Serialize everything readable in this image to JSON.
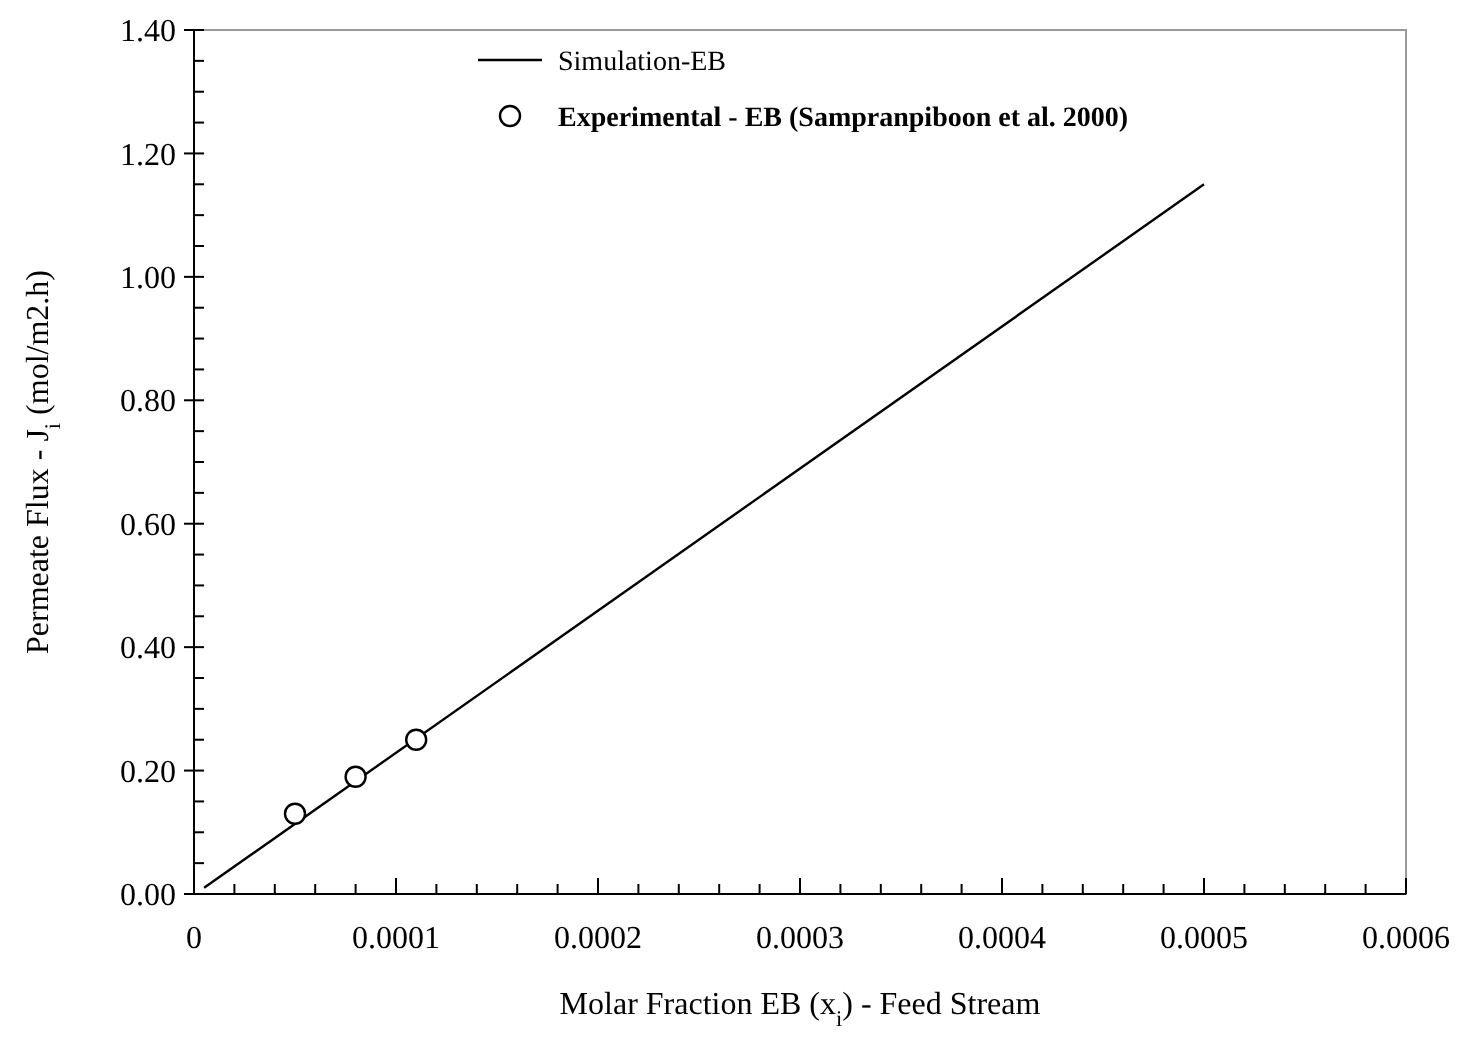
{
  "chart_data": {
    "type": "line",
    "xlabel": "Molar Fraction EB (x$_{i}$) - Feed Stream",
    "ylabel": "Permeate Flux - J$_{i}$ (mol/m2.h)",
    "xlim": [
      0,
      0.0006
    ],
    "ylim": [
      0,
      1.4
    ],
    "xticks": [
      0,
      {
        "value": 2e-05,
        "label": null
      },
      {
        "value": 4e-05,
        "label": null
      },
      {
        "value": 6e-05,
        "label": null
      },
      {
        "value": 8e-05,
        "label": null
      },
      0.0001,
      {
        "value": 0.00012,
        "label": null
      },
      {
        "value": 0.00014,
        "label": null
      },
      {
        "value": 0.00016,
        "label": null
      },
      {
        "value": 0.00018,
        "label": null
      },
      0.0002,
      {
        "value": 0.00022,
        "label": null
      },
      {
        "value": 0.00024,
        "label": null
      },
      {
        "value": 0.00026,
        "label": null
      },
      {
        "value": 0.00028,
        "label": null
      },
      0.0003,
      {
        "value": 0.00032,
        "label": null
      },
      {
        "value": 0.00034,
        "label": null
      },
      {
        "value": 0.00036,
        "label": null
      },
      {
        "value": 0.00038,
        "label": null
      },
      0.0004,
      {
        "value": 0.00042,
        "label": null
      },
      {
        "value": 0.00044,
        "label": null
      },
      {
        "value": 0.00046,
        "label": null
      },
      {
        "value": 0.00048,
        "label": null
      },
      0.0005,
      {
        "value": 0.00052,
        "label": null
      },
      {
        "value": 0.00054,
        "label": null
      },
      {
        "value": 0.00056,
        "label": null
      },
      {
        "value": 0.00058,
        "label": null
      },
      0.0006
    ],
    "yticks": [
      {
        "value": 0,
        "label": "0.00"
      },
      {
        "value": 0.05,
        "label": null
      },
      {
        "value": 0.1,
        "label": null
      },
      {
        "value": 0.15,
        "label": null
      },
      {
        "value": 0.2,
        "label": "0.20"
      },
      {
        "value": 0.25,
        "label": null
      },
      {
        "value": 0.3,
        "label": null
      },
      {
        "value": 0.35,
        "label": null
      },
      {
        "value": 0.4,
        "label": "0.40"
      },
      {
        "value": 0.45,
        "label": null
      },
      {
        "value": 0.5,
        "label": null
      },
      {
        "value": 0.55,
        "label": null
      },
      {
        "value": 0.6,
        "label": "0.60"
      },
      {
        "value": 0.65,
        "label": null
      },
      {
        "value": 0.7,
        "label": null
      },
      {
        "value": 0.75,
        "label": null
      },
      {
        "value": 0.8,
        "label": "0.80"
      },
      {
        "value": 0.85,
        "label": null
      },
      {
        "value": 0.9,
        "label": null
      },
      {
        "value": 0.95,
        "label": null
      },
      {
        "value": 1,
        "label": "1.00"
      },
      {
        "value": 1.05,
        "label": null
      },
      {
        "value": 1.1,
        "label": null
      },
      {
        "value": 1.15,
        "label": null
      },
      {
        "value": 1.2,
        "label": "1.20"
      },
      {
        "value": 1.25,
        "label": null
      },
      {
        "value": 1.3,
        "label": null
      },
      {
        "value": 1.35,
        "label": null
      },
      {
        "value": 1.4,
        "label": "1.40"
      }
    ],
    "grid": false,
    "legend": "top",
    "series": [
      {
        "name": "Simulation-EB",
        "color": "#000000",
        "marker": "none",
        "line_style": "solid",
        "x": [
          5e-06,
          0.0005
        ],
        "values": [
          0.01,
          1.15
        ]
      },
      {
        "name": "Experimental - EB (Sampranpiboon et al. 2000)",
        "type": "scatter",
        "color": "#000000",
        "marker": "circle",
        "x": [
          5e-05,
          8e-05,
          0.00011
        ],
        "values": [
          0.13,
          0.19,
          0.25
        ]
      }
    ]
  }
}
